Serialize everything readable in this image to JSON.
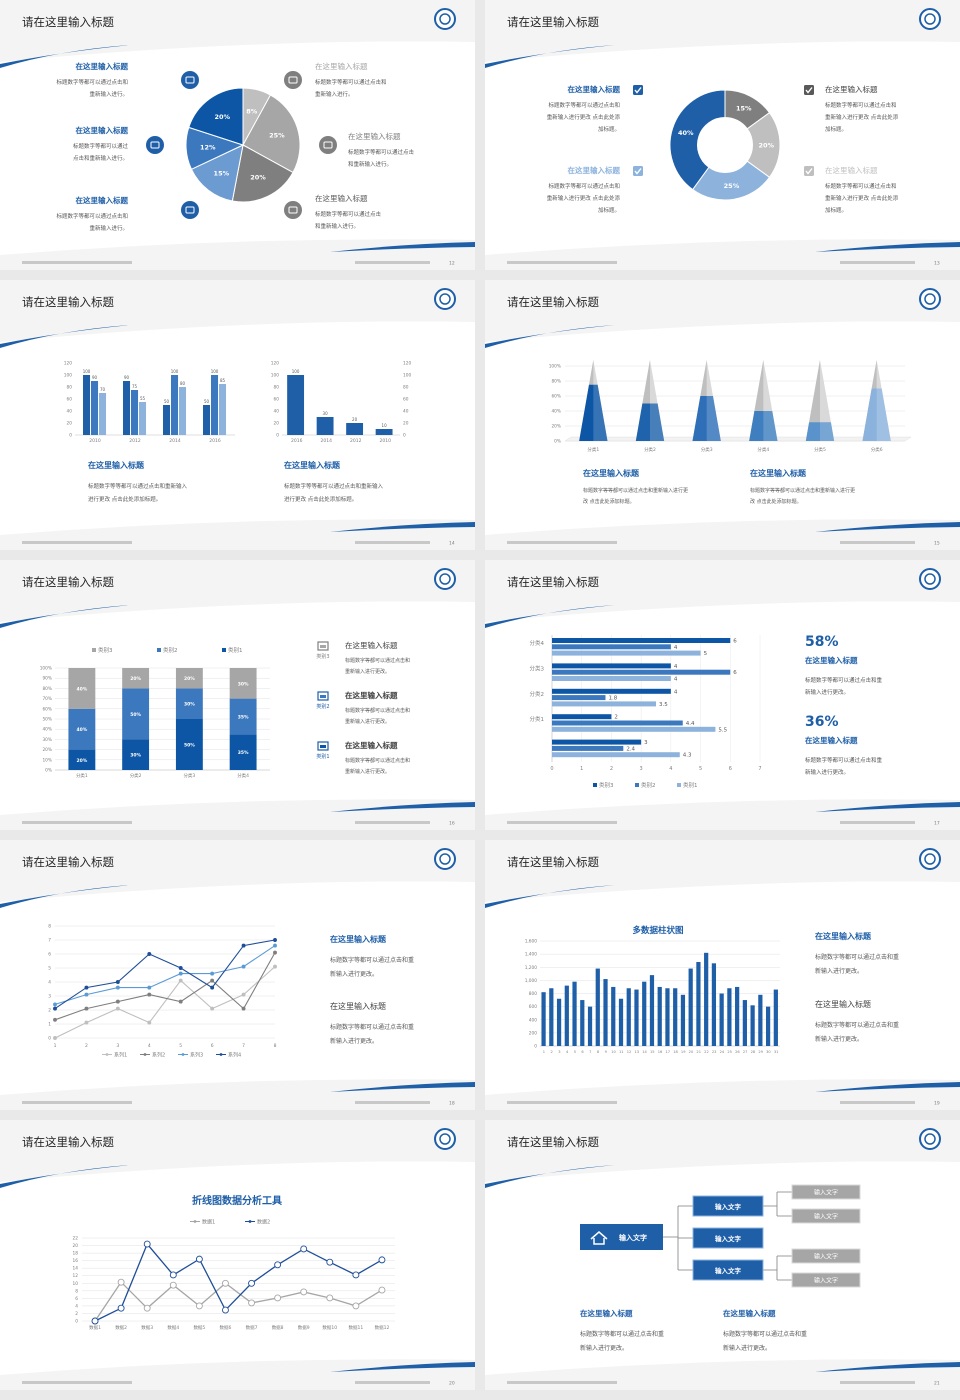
{
  "slides": [
    {
      "title": "请在这里输入标题",
      "page": "12",
      "chart": {
        "type": "pie",
        "values": [
          8,
          25,
          20,
          15,
          12,
          20
        ],
        "value_labels": [
          "8%",
          "25%",
          "20%",
          "15%",
          "12%",
          "20%"
        ],
        "colors": [
          "#bfbfbf",
          "#a6a6a6",
          "#7f7f7f",
          "#6c9bd2",
          "#3c78bd",
          "#0c56a5"
        ]
      },
      "items": [
        {
          "title": "在这里输入标题",
          "lines": [
            "标题数字等都可以通过点击和",
            "重新输入进行。"
          ]
        },
        {
          "title": "在这里输入标题",
          "lines": [
            "标题数字等都可以通过",
            "点击和重新输入进行。"
          ]
        },
        {
          "title": "在这里输入标题",
          "lines": [
            "标题数字等都可以通过点击和",
            "重新输入进行。"
          ]
        },
        {
          "title": "在这里输入标题",
          "lines": [
            "标题数字等都可以通过点击和",
            "重新输入进行。"
          ]
        },
        {
          "title": "在这里输入标题",
          "lines": [
            "标题数字等都可以通过点击",
            "和重新输入进行。"
          ]
        },
        {
          "title": "在这里输入标题",
          "lines": [
            "标题数字等都可以通过点击",
            "和重新输入进行。"
          ]
        }
      ]
    },
    {
      "title": "请在这里输入标题",
      "page": "13",
      "chart": {
        "type": "donut",
        "values": [
          15,
          20,
          25,
          40
        ],
        "value_labels": [
          "15%",
          "20%",
          "25%",
          "40%"
        ],
        "colors": [
          "#7f7f7f",
          "#bfbfbf",
          "#8db3dd",
          "#1f5fa8"
        ]
      },
      "items": [
        {
          "title": "在这里输入标题",
          "lines": [
            "标题数字等都可以通过点击和",
            "重新输入进行更改 点击此处添",
            "加标题。"
          ]
        },
        {
          "title": "在这里输入标题",
          "lines": [
            "标题数字等都可以通过点击和",
            "重新输入进行更改 点击此处添",
            "加标题。"
          ]
        },
        {
          "title": "在这里输入标题",
          "lines": [
            "标题数字等都可以通过点击和",
            "重新输入进行更改 点击此处添",
            "加标题。"
          ]
        },
        {
          "title": "在这里输入标题",
          "lines": [
            "标题数字等都可以通过点击和",
            "重新输入进行更改 点击此处添",
            "加标题。"
          ]
        }
      ]
    },
    {
      "title": "请在这里输入标题",
      "page": "14",
      "charts": [
        {
          "type": "bar",
          "categories": [
            "2010",
            "2012",
            "2014",
            "2016"
          ],
          "data_labels": true,
          "series": [
            {
              "color": "#1f5fa8",
              "values": [
                100,
                90,
                50,
                50
              ]
            },
            {
              "color": "#3c78bd",
              "values": [
                90,
                75,
                100,
                100
              ]
            },
            {
              "color": "#8db3dd",
              "values": [
                70,
                55,
                80,
                85
              ]
            }
          ],
          "ylim": [
            0,
            120
          ],
          "yticks": [
            0,
            20,
            40,
            60,
            80,
            100,
            120
          ]
        },
        {
          "type": "bar",
          "categories": [
            "2016",
            "2014",
            "2012",
            "2010"
          ],
          "data_labels": true,
          "color": "#1f5fa8",
          "values": [
            100,
            30,
            20,
            10
          ],
          "ylim": [
            0,
            120
          ],
          "yticks": [
            0,
            20,
            40,
            60,
            80,
            100,
            120
          ],
          "y2lim": [
            0,
            120
          ],
          "y2ticks": [
            0,
            20,
            40,
            60,
            80,
            100,
            120
          ]
        }
      ],
      "items": [
        {
          "title": "在这里输入标题",
          "lines": [
            "标题数字等等都可以通过点击和重新输入",
            "进行更改 点击此处添加标题。"
          ]
        },
        {
          "title": "在这里输入标题",
          "lines": [
            "标题数字等等都可以通过点击和重新输入",
            "进行更改 点击此处添加标题。"
          ]
        }
      ]
    },
    {
      "title": "请在这里输入标题",
      "page": "15",
      "chart": {
        "type": "cone",
        "categories": [
          "分类1",
          "分类2",
          "分类3",
          "分类4",
          "分类5",
          "分类6"
        ],
        "values": [
          75,
          50,
          60,
          40,
          25,
          70
        ],
        "colors": [
          "#0c56a5",
          "#1f63ad",
          "#2e6fb7",
          "#3f7fc0",
          "#5a93cc",
          "#8ab2dc"
        ],
        "grid": true,
        "ylim": [
          0,
          100
        ],
        "yticks": [
          {
            "value": 0,
            "label": "0%"
          },
          {
            "value": 20,
            "label": "20%"
          },
          {
            "value": 40,
            "label": "40%"
          },
          {
            "value": 60,
            "label": "60%"
          },
          {
            "value": 80,
            "label": "80%"
          },
          {
            "value": 100,
            "label": "100%"
          }
        ]
      },
      "items": [
        {
          "title": "在这里输入标题",
          "lines": [
            "标题数字等等都可以通过点击和重新输入进行更",
            "改 点击此处添加标题。"
          ]
        },
        {
          "title": "在这里输入标题",
          "lines": [
            "标题数字等等都可以通过点击和重新输入进行更",
            "改 点击此处添加标题。"
          ]
        }
      ]
    },
    {
      "title": "请在这里输入标题",
      "page": "16",
      "chart": {
        "type": "bar",
        "stacked": true,
        "categories": [
          "分类1",
          "分类2",
          "分类3",
          "分类4"
        ],
        "series": [
          {
            "name": "类别1",
            "color": "#0c56a5",
            "values": [
              20,
              30,
              50,
              35
            ],
            "value_labels": [
              "20%",
              "30%",
              "50%",
              "35%"
            ]
          },
          {
            "name": "类别2",
            "color": "#3c78bd",
            "values": [
              40,
              50,
              30,
              35
            ],
            "value_labels": [
              "40%",
              "50%",
              "30%",
              "35%"
            ]
          },
          {
            "name": "类别3",
            "color": "#a6a6a6",
            "values": [
              40,
              20,
              20,
              30
            ],
            "value_labels": [
              "40%",
              "20%",
              "20%",
              "30%"
            ]
          }
        ],
        "grid": true,
        "ylim": [
          0,
          100
        ],
        "yticks": [
          {
            "value": 0,
            "label": "0%"
          },
          {
            "value": 10,
            "label": "10%"
          },
          {
            "value": 20,
            "label": "20%"
          },
          {
            "value": 30,
            "label": "30%"
          },
          {
            "value": 40,
            "label": "40%"
          },
          {
            "value": 50,
            "label": "50%"
          },
          {
            "value": 60,
            "label": "60%"
          },
          {
            "value": 70,
            "label": "70%"
          },
          {
            "value": 80,
            "label": "80%"
          },
          {
            "value": 90,
            "label": "90%"
          },
          {
            "value": 100,
            "label": "100%"
          }
        ]
      },
      "items": [
        {
          "label": "类别3",
          "title": "在这里输入标题",
          "lines": [
            "标题数字等都可以通过点击和",
            "重新输入进行更改。"
          ]
        },
        {
          "label": "类别2",
          "title": "在这里输入标题",
          "lines": [
            "标题数字等都可以通过点击和",
            "重新输入进行更改。"
          ]
        },
        {
          "label": "类别1",
          "title": "在这里输入标题",
          "lines": [
            "标题数字等都可以通过点击和",
            "重新输入进行更改。"
          ]
        }
      ]
    },
    {
      "title": "请在这里输入标题",
      "page": "17",
      "chart": {
        "type": "hbar",
        "categories": [
          null,
          "分类1",
          "分类2",
          "分类3",
          "分类4"
        ],
        "series": [
          {
            "name": "类别3",
            "color": "#0c56a5",
            "values": [
              3,
              2,
              4,
              4,
              6
            ]
          },
          {
            "name": "类别2",
            "color": "#3c78bd",
            "values": [
              2.4,
              4.4,
              1.8,
              6,
              4
            ]
          },
          {
            "name": "类别1",
            "color": "#8db3dd",
            "values": [
              4.3,
              5.5,
              3.5,
              4,
              5
            ]
          }
        ],
        "xlim": [
          0,
          7
        ],
        "xticks": [
          0,
          1,
          2,
          3,
          4,
          5,
          6,
          7
        ],
        "grid": true
      },
      "stats": [
        {
          "value": "58%",
          "title": "在这里输入标题",
          "lines": [
            "标题数字等都可以通过点击和重",
            "新输入进行更改。"
          ]
        },
        {
          "value": "36%",
          "title": "在这里输入标题",
          "lines": [
            "标题数字等都可以通过点击和重",
            "新输入进行更改。"
          ]
        }
      ]
    },
    {
      "title": "请在这里输入标题",
      "page": "18",
      "chart": {
        "type": "line",
        "x": [
          1,
          2,
          3,
          4,
          5,
          6,
          7,
          8
        ],
        "xlim": [
          1,
          8
        ],
        "xticks": [
          1,
          2,
          3,
          4,
          5,
          6,
          7,
          8
        ],
        "ylim": [
          0,
          8
        ],
        "yticks": [
          0,
          1,
          2,
          3,
          4,
          5,
          6,
          7,
          8
        ],
        "grid": true,
        "series": [
          {
            "name": "系列1",
            "color": "#bfbfbf",
            "values": [
              0,
              1.1,
              2.1,
              1.1,
              4.1,
              2.1,
              3.1,
              5.1
            ]
          },
          {
            "name": "系列2",
            "color": "#7f7f7f",
            "values": [
              1.3,
              2.1,
              2.6,
              3.1,
              2.6,
              4.1,
              2.1,
              6.1
            ]
          },
          {
            "name": "系列3",
            "color": "#5b9bd5",
            "values": [
              2.4,
              3.1,
              3.6,
              3.6,
              4.6,
              4.6,
              5.1,
              6.6
            ]
          },
          {
            "name": "系列4",
            "color": "#1f4e99",
            "values": [
              2.1,
              3.6,
              4,
              6,
              5,
              3.6,
              6.6,
              7
            ]
          }
        ]
      },
      "items": [
        {
          "title": "在这里输入标题",
          "lines": [
            "标题数字等都可以通过点击和重",
            "新输入进行更改。"
          ]
        },
        {
          "title": "在这里输入标题",
          "lines": [
            "标题数字等都可以通过点击和重",
            "新输入进行更改。"
          ]
        }
      ]
    },
    {
      "title": "请在这里输入标题",
      "page": "19",
      "chart": {
        "type": "bar",
        "title": "多数据柱状图",
        "color": "#1f5fa8",
        "grid": true,
        "categories": [
          "1",
          "2",
          "3",
          "4",
          "5",
          "6",
          "7",
          "8",
          "9",
          "10",
          "11",
          "12",
          "13",
          "14",
          "15",
          "16",
          "17",
          "18",
          "19",
          "20",
          "21",
          "22",
          "23",
          "24",
          "25",
          "26",
          "27",
          "28",
          "29",
          "30",
          "31"
        ],
        "values": [
          820,
          880,
          720,
          920,
          980,
          700,
          600,
          1180,
          1020,
          900,
          720,
          880,
          860,
          980,
          1080,
          900,
          880,
          880,
          780,
          1180,
          1280,
          1420,
          1260,
          800,
          880,
          900,
          700,
          620,
          780,
          600,
          860
        ],
        "ylim": [
          0,
          1600
        ],
        "yticks": [
          0,
          200,
          400,
          600,
          800,
          {
            "value": 1000,
            "label": "1,000"
          },
          {
            "value": 1200,
            "label": "1,200"
          },
          {
            "value": 1400,
            "label": "1,400"
          },
          {
            "value": 1600,
            "label": "1,600"
          }
        ]
      },
      "items": [
        {
          "title": "在这里输入标题",
          "lines": [
            "标题数字等都可以通过点击和重",
            "新输入进行更改。"
          ]
        },
        {
          "title": "在这里输入标题",
          "lines": [
            "标题数字等都可以通过点击和重",
            "新输入进行更改。"
          ]
        }
      ]
    },
    {
      "title": "请在这里输入标题",
      "page": "20",
      "chart": {
        "type": "line",
        "title": "折线图数据分析工具",
        "grid": true,
        "categories": [
          "数据1",
          "数据2",
          "数据3",
          "数据4",
          "数据5",
          "数据6",
          "数据7",
          "数据8",
          "数据9",
          "数据10",
          "数据11",
          "数据12"
        ],
        "ylim": [
          0,
          22
        ],
        "yticks": [
          0,
          2,
          4,
          6,
          8,
          10,
          12,
          14,
          16,
          18,
          20,
          22
        ],
        "series": [
          {
            "name": "数据1",
            "color": "#a6a6a6",
            "values": [
              0,
              10.3,
              3.4,
              9.5,
              4,
              10,
              4.8,
              6.1,
              7.7,
              6.1,
              4,
              8.2
            ]
          },
          {
            "name": "数据2",
            "color": "#1f4e99",
            "values": [
              0,
              3.4,
              20.4,
              12.2,
              16.4,
              2.9,
              10,
              14.9,
              19.1,
              15.6,
              12.2,
              16.2
            ]
          }
        ]
      }
    },
    {
      "title": "请在这里输入标题",
      "page": "21",
      "diagram": {
        "root": "输入文字",
        "mids": [
          "输入文字",
          "输入文字",
          "输入文字"
        ],
        "leaves": [
          "输入文字",
          "输入文字",
          "输入文字",
          "输入文字"
        ]
      },
      "items": [
        {
          "title": "在这里输入标题",
          "lines": [
            "标题数字等都可以通过点击和重",
            "新输入进行更改。"
          ]
        },
        {
          "title": "在这里输入标题",
          "lines": [
            "标题数字等都可以通过点击和重",
            "新输入进行更改。"
          ]
        }
      ]
    }
  ]
}
